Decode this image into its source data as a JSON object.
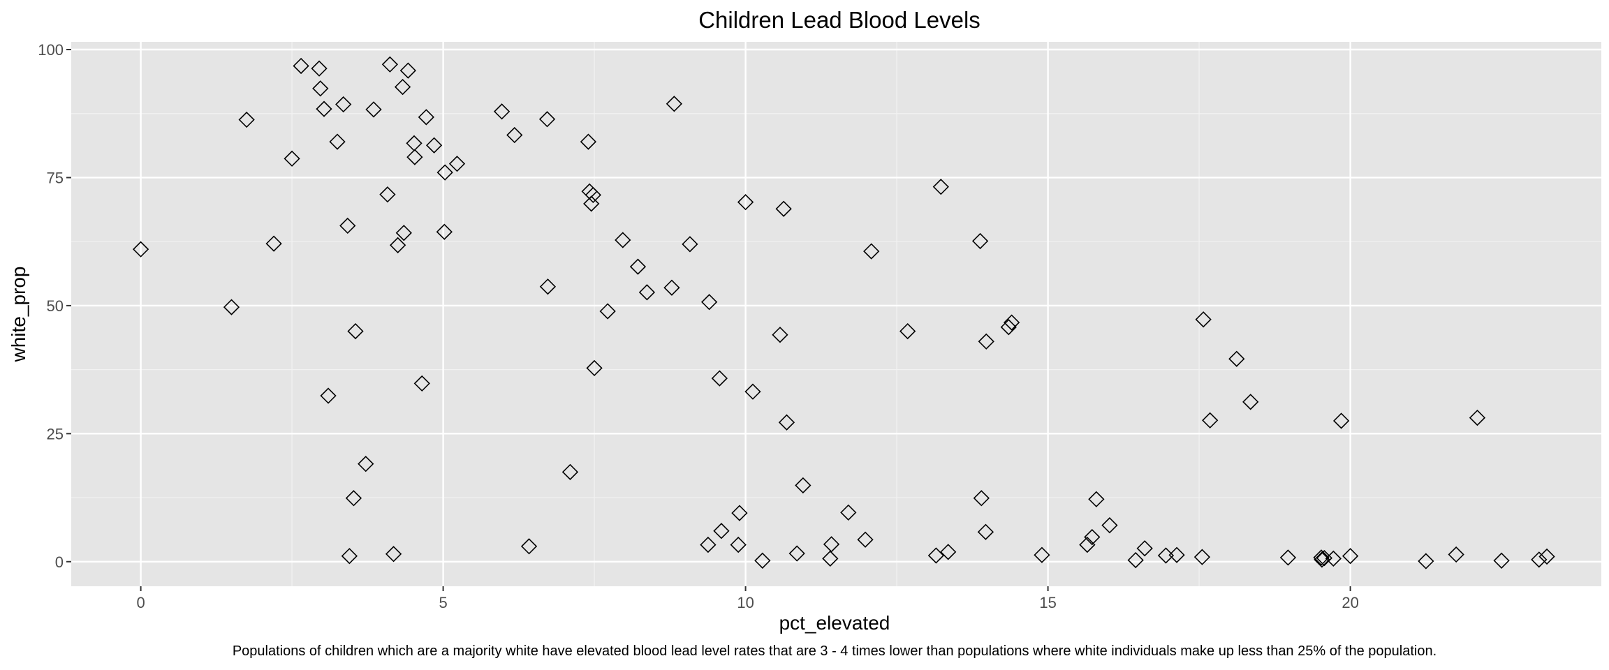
{
  "chart_data": {
    "type": "scatter",
    "title": "Children Lead Blood Levels",
    "xlabel": "pct_elevated",
    "ylabel": "white_prop",
    "caption": "Populations of children which are a majority white have elevated blood lead level rates that are 3 - 4 times lower than populations where white individuals make up less than 25% of the population.",
    "xlim": [
      -1.15,
      24.15
    ],
    "ylim": [
      -4.8,
      101.5
    ],
    "xticks": [
      0,
      5,
      10,
      15,
      20
    ],
    "yticks": [
      0,
      25,
      50,
      75,
      100
    ],
    "xtick_labels": [
      "0",
      "5",
      "10",
      "15",
      "20"
    ],
    "ytick_labels": [
      "0",
      "25",
      "50",
      "75",
      "100"
    ],
    "grid": true,
    "marker": "open-diamond",
    "points": [
      [
        0.0,
        61.0
      ],
      [
        1.5,
        49.7
      ],
      [
        1.75,
        86.3
      ],
      [
        2.2,
        62.1
      ],
      [
        2.5,
        78.7
      ],
      [
        2.65,
        96.8
      ],
      [
        2.95,
        96.3
      ],
      [
        2.97,
        92.4
      ],
      [
        3.03,
        88.4
      ],
      [
        3.1,
        32.4
      ],
      [
        3.25,
        82.0
      ],
      [
        3.35,
        89.3
      ],
      [
        3.42,
        65.6
      ],
      [
        3.45,
        1.1
      ],
      [
        3.52,
        12.4
      ],
      [
        3.55,
        45.0
      ],
      [
        3.72,
        19.1
      ],
      [
        3.85,
        88.3
      ],
      [
        4.08,
        71.7
      ],
      [
        4.12,
        97.1
      ],
      [
        4.18,
        1.5
      ],
      [
        4.25,
        61.8
      ],
      [
        4.33,
        92.7
      ],
      [
        4.35,
        64.2
      ],
      [
        4.42,
        95.9
      ],
      [
        4.52,
        81.7
      ],
      [
        4.53,
        79.0
      ],
      [
        4.65,
        34.8
      ],
      [
        4.72,
        86.8
      ],
      [
        4.85,
        81.3
      ],
      [
        5.02,
        64.4
      ],
      [
        5.03,
        76.0
      ],
      [
        5.23,
        77.7
      ],
      [
        5.97,
        87.9
      ],
      [
        6.18,
        83.3
      ],
      [
        6.42,
        3.0
      ],
      [
        6.72,
        86.4
      ],
      [
        6.73,
        53.7
      ],
      [
        7.1,
        17.5
      ],
      [
        7.4,
        82.0
      ],
      [
        7.42,
        72.3
      ],
      [
        7.45,
        69.9
      ],
      [
        7.48,
        71.6
      ],
      [
        7.5,
        37.8
      ],
      [
        7.72,
        48.9
      ],
      [
        7.97,
        62.8
      ],
      [
        8.22,
        57.6
      ],
      [
        8.37,
        52.6
      ],
      [
        8.78,
        53.5
      ],
      [
        8.82,
        89.4
      ],
      [
        9.08,
        62.0
      ],
      [
        9.38,
        3.3
      ],
      [
        9.4,
        50.7
      ],
      [
        9.57,
        35.8
      ],
      [
        9.6,
        6.0
      ],
      [
        9.88,
        3.3
      ],
      [
        9.9,
        9.5
      ],
      [
        10.0,
        70.2
      ],
      [
        10.12,
        33.2
      ],
      [
        10.28,
        0.2
      ],
      [
        10.57,
        44.3
      ],
      [
        10.63,
        68.9
      ],
      [
        10.68,
        27.2
      ],
      [
        10.85,
        1.6
      ],
      [
        10.95,
        14.9
      ],
      [
        11.4,
        0.6
      ],
      [
        11.42,
        3.4
      ],
      [
        11.7,
        9.6
      ],
      [
        11.98,
        4.3
      ],
      [
        12.08,
        60.6
      ],
      [
        12.68,
        45.0
      ],
      [
        13.15,
        1.2
      ],
      [
        13.23,
        73.2
      ],
      [
        13.35,
        1.9
      ],
      [
        13.88,
        62.6
      ],
      [
        13.9,
        12.4
      ],
      [
        13.97,
        5.8
      ],
      [
        13.98,
        43.0
      ],
      [
        14.35,
        45.8
      ],
      [
        14.4,
        46.7
      ],
      [
        14.9,
        1.3
      ],
      [
        15.65,
        3.3
      ],
      [
        15.73,
        4.8
      ],
      [
        15.8,
        12.2
      ],
      [
        16.02,
        7.1
      ],
      [
        16.45,
        0.3
      ],
      [
        16.6,
        2.6
      ],
      [
        16.95,
        1.2
      ],
      [
        17.13,
        1.3
      ],
      [
        17.55,
        0.9
      ],
      [
        17.57,
        47.3
      ],
      [
        17.68,
        27.6
      ],
      [
        18.12,
        39.6
      ],
      [
        18.35,
        31.2
      ],
      [
        18.97,
        0.8
      ],
      [
        19.52,
        0.8
      ],
      [
        19.53,
        0.4
      ],
      [
        19.57,
        0.7
      ],
      [
        19.72,
        0.6
      ],
      [
        19.85,
        27.5
      ],
      [
        20.0,
        1.1
      ],
      [
        21.25,
        0.1
      ],
      [
        21.75,
        1.4
      ],
      [
        22.1,
        28.1
      ],
      [
        22.5,
        0.2
      ],
      [
        23.12,
        0.4
      ],
      [
        23.25,
        1.0
      ]
    ]
  }
}
